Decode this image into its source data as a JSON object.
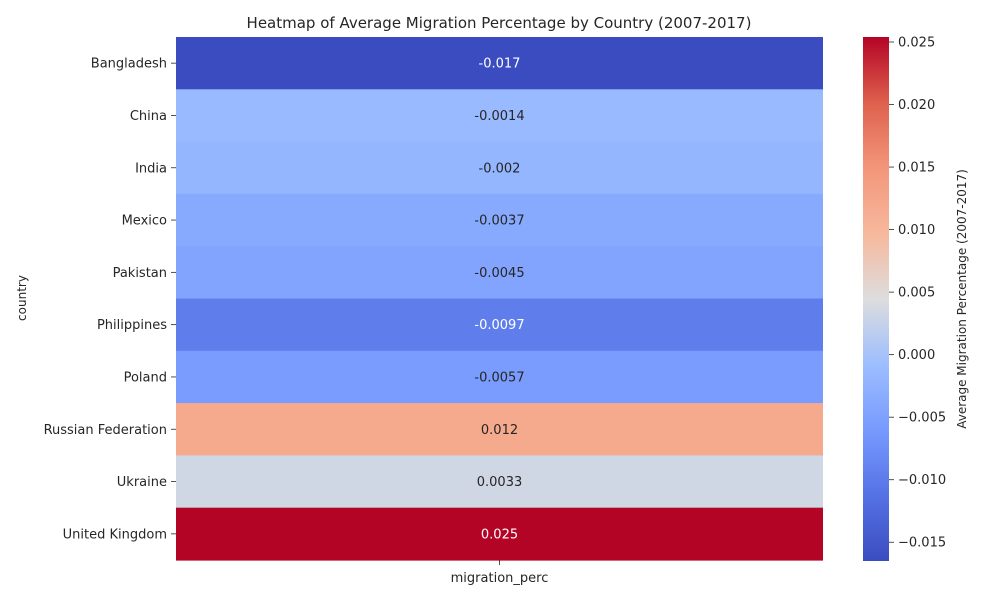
{
  "chart_data": {
    "type": "heatmap",
    "title": "Heatmap of Average Migration Percentage by Country (2007-2017)",
    "ylabel": "country",
    "xlabel": "",
    "columns": [
      "migration_perc"
    ],
    "rows": [
      {
        "country": "Bangladesh",
        "value": -0.0165,
        "label": "-0.017"
      },
      {
        "country": "China",
        "value": -0.0014,
        "label": "-0.0014"
      },
      {
        "country": "India",
        "value": -0.002,
        "label": "-0.002"
      },
      {
        "country": "Mexico",
        "value": -0.0037,
        "label": "-0.0037"
      },
      {
        "country": "Pakistan",
        "value": -0.0045,
        "label": "-0.0045"
      },
      {
        "country": "Philippines",
        "value": -0.0097,
        "label": "-0.0097"
      },
      {
        "country": "Poland",
        "value": -0.0057,
        "label": "-0.0057"
      },
      {
        "country": "Russian Federation",
        "value": 0.012,
        "label": "0.012"
      },
      {
        "country": "Ukraine",
        "value": 0.0033,
        "label": "0.0033"
      },
      {
        "country": "United Kingdom",
        "value": 0.0254,
        "label": "0.025"
      }
    ],
    "colorbar": {
      "label": "Average Migration Percentage (2007-2017)",
      "min": -0.0165,
      "max": 0.0254,
      "colormap": "coolwarm",
      "ticks": [
        {
          "value": -0.015,
          "label": "−0.015"
        },
        {
          "value": -0.01,
          "label": "−0.010"
        },
        {
          "value": -0.005,
          "label": "−0.005"
        },
        {
          "value": 0.0,
          "label": "0.000"
        },
        {
          "value": 0.005,
          "label": "0.005"
        },
        {
          "value": 0.01,
          "label": "0.010"
        },
        {
          "value": 0.015,
          "label": "0.015"
        },
        {
          "value": 0.02,
          "label": "0.020"
        },
        {
          "value": 0.025,
          "label": "0.025"
        }
      ]
    }
  }
}
